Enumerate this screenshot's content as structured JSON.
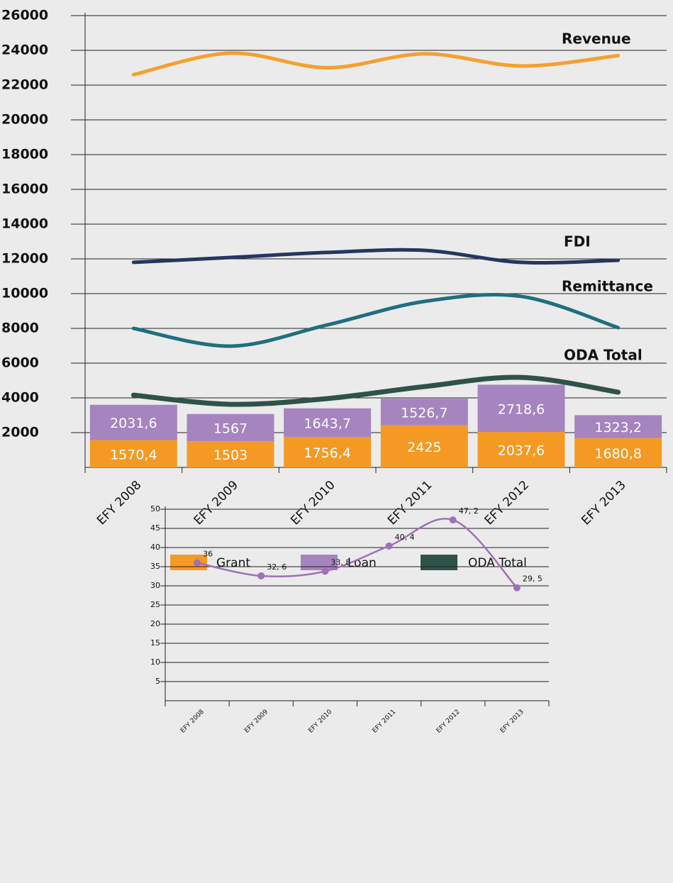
{
  "chart_data": [
    {
      "type": "bar",
      "stacked": true,
      "categories": [
        "EFY 2008",
        "EFY 2009",
        "EFY 2010",
        "EFY 2011",
        "EFY 2012",
        "EFY 2013"
      ],
      "series": [
        {
          "name": "Grant",
          "type": "bar",
          "color": "#f49a24",
          "values": [
            1570.4,
            1503,
            1756.4,
            2425,
            2037.6,
            1680.8
          ],
          "value_labels": [
            "1570,4",
            "1503",
            "1756,4",
            "2425",
            "2037,6",
            "1680,8"
          ]
        },
        {
          "name": "Loan",
          "type": "bar",
          "color": "#a684bf",
          "values": [
            2031.6,
            1567,
            1643.7,
            1526.7,
            2718.6,
            1323.2
          ],
          "value_labels": [
            "2031,6",
            "1567",
            "1643,7",
            "1526,7",
            "2718,6",
            "1323,2"
          ]
        },
        {
          "name": "ODA Total",
          "type": "line",
          "color": "#2f5249",
          "values": [
            4160,
            3630,
            3960,
            4650,
            5180,
            4330
          ]
        },
        {
          "name": "Revenue",
          "type": "line",
          "color": "#f4a030",
          "values": [
            22600,
            23840,
            23000,
            23800,
            23100,
            23700
          ]
        },
        {
          "name": "FDI",
          "type": "line",
          "color": "#253660",
          "values": [
            11800,
            12080,
            12370,
            12490,
            11800,
            11920
          ]
        },
        {
          "name": "Remittance",
          "type": "line",
          "color": "#1f6f80",
          "values": [
            8000,
            6980,
            8200,
            9550,
            9840,
            8040
          ]
        }
      ],
      "ylim": [
        0,
        26000
      ],
      "yticks": [
        2000,
        4000,
        6000,
        8000,
        10000,
        12000,
        14000,
        16000,
        18000,
        20000,
        22000,
        24000,
        26000
      ],
      "grid": true
    },
    {
      "type": "line",
      "categories": [
        "EFY 2008",
        "EFY 2009",
        "EFY 2010",
        "EFY 2011",
        "EFY 2012",
        "EFY 2013"
      ],
      "values": [
        36,
        32.6,
        33.8,
        40.4,
        47.2,
        29.5
      ],
      "value_labels": [
        "36",
        "32, 6",
        "33, 8",
        "40, 4",
        "47, 2",
        "29, 5"
      ],
      "color": "#a071b8",
      "ylim": [
        0,
        50
      ],
      "yticks": [
        5,
        10,
        15,
        20,
        25,
        30,
        35,
        40,
        45,
        50
      ],
      "grid": true
    }
  ]
}
